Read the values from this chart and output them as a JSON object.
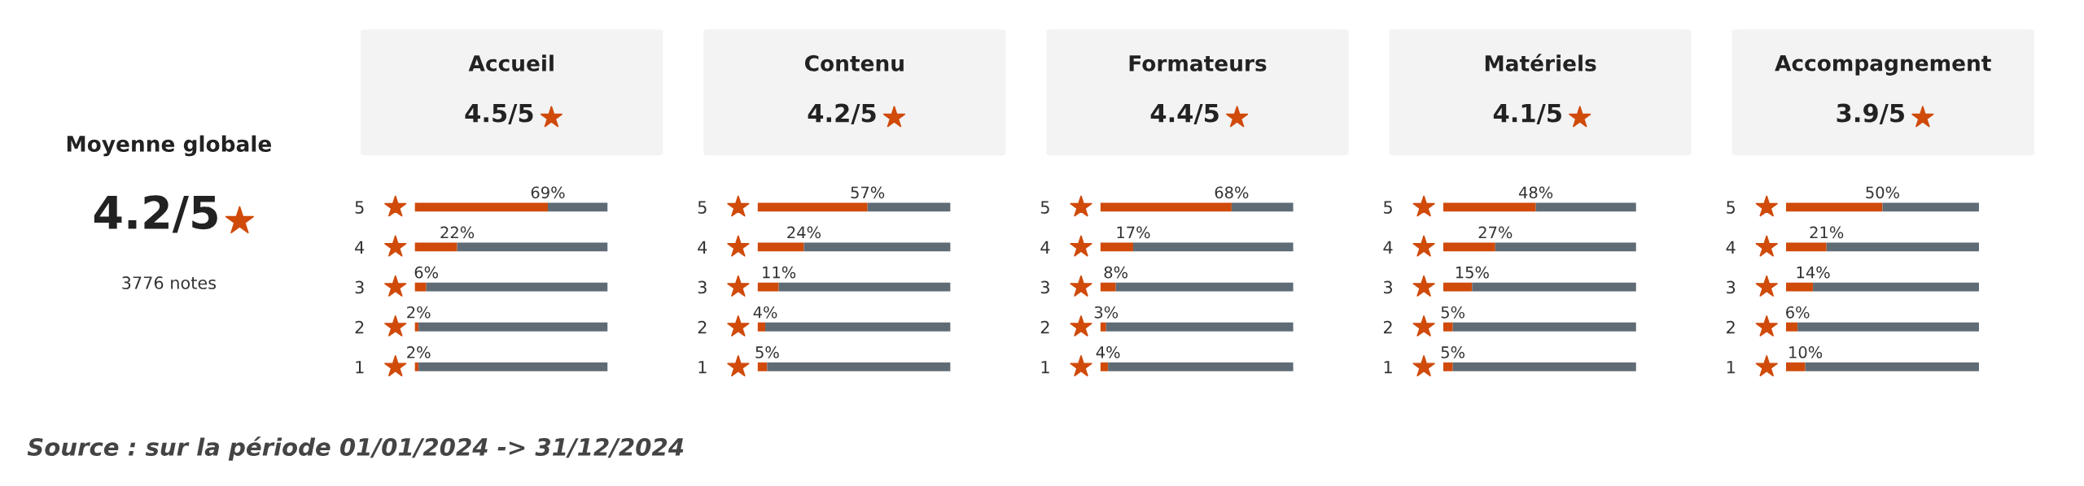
{
  "chart_data": [
    {
      "type": "other",
      "title": "Moyenne globale",
      "subtitle": "4.2/5",
      "annotations": [
        "3776 notes",
        "Source : sur la période 01/01/2024 -> 31/12/2024"
      ]
    },
    {
      "type": "bar",
      "orientation": "horizontal",
      "stacked": true,
      "title": "Accueil",
      "subtitle": "4.5/5",
      "categories": [
        "5",
        "4",
        "3",
        "2",
        "1"
      ],
      "xlim": [
        0,
        100
      ],
      "tick_labels": "y",
      "series": [
        {
          "color": "#d04a0a",
          "values": [
            69,
            22,
            6,
            2,
            2
          ],
          "value_labels": [
            "69%",
            "22%",
            "6%",
            "2%",
            "2%"
          ]
        },
        {
          "color": "#5f6b75",
          "values": [
            31,
            78,
            94,
            98,
            98
          ]
        }
      ]
    },
    {
      "type": "bar",
      "orientation": "horizontal",
      "stacked": true,
      "title": "Contenu",
      "subtitle": "4.2/5",
      "categories": [
        "5",
        "4",
        "3",
        "2",
        "1"
      ],
      "xlim": [
        0,
        100
      ],
      "tick_labels": "y",
      "series": [
        {
          "color": "#d04a0a",
          "values": [
            57,
            24,
            11,
            4,
            5
          ],
          "value_labels": [
            "57%",
            "24%",
            "11%",
            "4%",
            "5%"
          ]
        },
        {
          "color": "#5f6b75",
          "values": [
            43,
            76,
            89,
            96,
            95
          ]
        }
      ]
    },
    {
      "type": "bar",
      "orientation": "horizontal",
      "stacked": true,
      "title": "Formateurs",
      "subtitle": "4.4/5",
      "categories": [
        "5",
        "4",
        "3",
        "2",
        "1"
      ],
      "xlim": [
        0,
        100
      ],
      "tick_labels": "y",
      "series": [
        {
          "color": "#d04a0a",
          "values": [
            68,
            17,
            8,
            3,
            4
          ],
          "value_labels": [
            "68%",
            "17%",
            "8%",
            "3%",
            "4%"
          ]
        },
        {
          "color": "#5f6b75",
          "values": [
            32,
            83,
            92,
            97,
            96
          ]
        }
      ]
    },
    {
      "type": "bar",
      "orientation": "horizontal",
      "stacked": true,
      "title": "Matériels",
      "subtitle": "4.1/5",
      "categories": [
        "5",
        "4",
        "3",
        "2",
        "1"
      ],
      "xlim": [
        0,
        100
      ],
      "tick_labels": "y",
      "series": [
        {
          "color": "#d04a0a",
          "values": [
            48,
            27,
            15,
            5,
            5
          ],
          "value_labels": [
            "48%",
            "27%",
            "15%",
            "5%",
            "5%"
          ]
        },
        {
          "color": "#5f6b75",
          "values": [
            52,
            73,
            85,
            95,
            95
          ]
        }
      ]
    },
    {
      "type": "bar",
      "orientation": "horizontal",
      "stacked": true,
      "title": "Accompagnement",
      "subtitle": "3.9/5",
      "categories": [
        "5",
        "4",
        "3",
        "2",
        "1"
      ],
      "xlim": [
        0,
        100
      ],
      "tick_labels": "y",
      "series": [
        {
          "color": "#d04a0a",
          "values": [
            50,
            21,
            14,
            6,
            10
          ],
          "value_labels": [
            "50%",
            "21%",
            "14%",
            "6%",
            "10%"
          ]
        },
        {
          "color": "#5f6b75",
          "values": [
            50,
            79,
            86,
            94,
            90
          ]
        }
      ]
    }
  ]
}
